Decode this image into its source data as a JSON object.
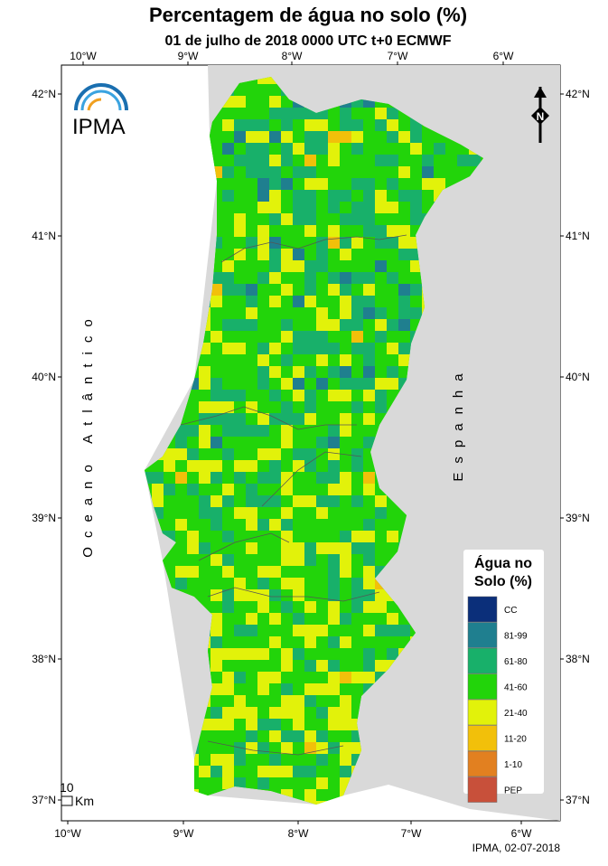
{
  "header": {
    "title": "Percentagem de água no solo (%)",
    "subtitle": "01 de julho de 2018 0000 UTC t+0 ECMWF"
  },
  "axes": {
    "top": [
      "10°W",
      "9°W",
      "8°W",
      "7°W",
      "6°W"
    ],
    "bottom": [
      "10°W",
      "9°W",
      "8°W",
      "7°W",
      "6°W"
    ],
    "left": [
      "42°N",
      "41°N",
      "40°N",
      "39°N",
      "38°N",
      "37°N"
    ],
    "right": [
      "42°N",
      "41°N",
      "40°N",
      "39°N",
      "38°N",
      "37°N"
    ]
  },
  "map": {
    "ocean_label": "Oceano Atlântico",
    "land_label": "Espanha",
    "logo": "IPMA",
    "north": "N",
    "scale_value": "10",
    "scale_unit": "Km",
    "credit": "IPMA, 02-07-2018"
  },
  "legend": {
    "title": [
      "Água no",
      "Solo (%)"
    ],
    "items": [
      {
        "label": "CC",
        "color": "#0b2f7a"
      },
      {
        "label": "81-99",
        "color": "#1f7f8f"
      },
      {
        "label": "61-80",
        "color": "#18b06a"
      },
      {
        "label": "41-60",
        "color": "#22d40a"
      },
      {
        "label": "21-40",
        "color": "#e2f20a"
      },
      {
        "label": "11-20",
        "color": "#f2c00a"
      },
      {
        "label": "1-10",
        "color": "#e28020"
      },
      {
        "label": "PEP",
        "color": "#c8503a"
      }
    ]
  }
}
